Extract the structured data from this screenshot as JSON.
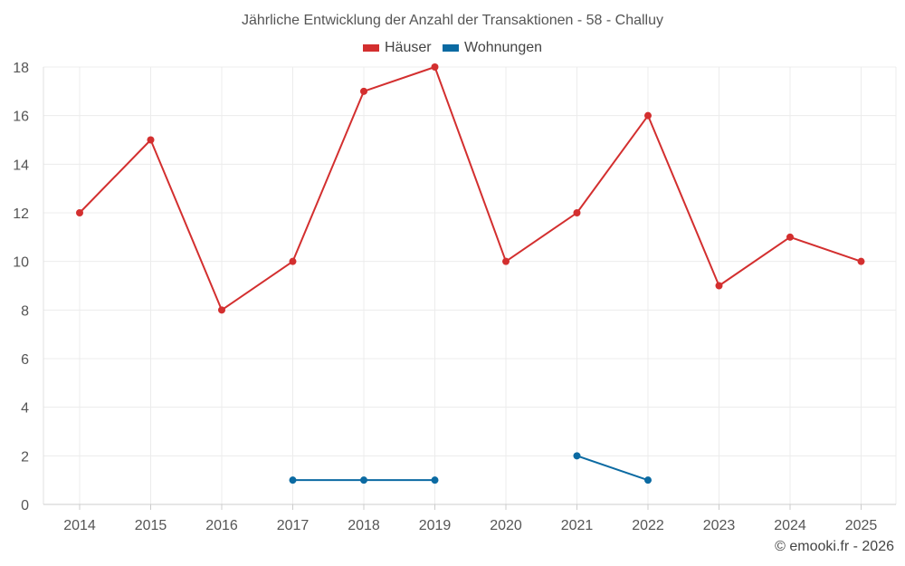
{
  "chart_data": {
    "type": "line",
    "title": "Jährliche Entwicklung der Anzahl der Transaktionen - 58 - Challuy",
    "xlabel": "",
    "ylabel": "",
    "categories": [
      "2014",
      "2015",
      "2016",
      "2017",
      "2018",
      "2019",
      "2020",
      "2021",
      "2022",
      "2023",
      "2024",
      "2025"
    ],
    "ylim": [
      0,
      18
    ],
    "yticks": [
      0,
      2,
      4,
      6,
      8,
      10,
      12,
      14,
      16,
      18
    ],
    "grid": true,
    "legend_position": "top-center",
    "series": [
      {
        "name": "Häuser",
        "color": "#d32f2f",
        "values": [
          12,
          15,
          8,
          10,
          17,
          18,
          10,
          12,
          16,
          9,
          11,
          10
        ]
      },
      {
        "name": "Wohnungen",
        "color": "#0b6aa2",
        "values": [
          null,
          null,
          null,
          1,
          1,
          1,
          null,
          2,
          1,
          null,
          null,
          null
        ]
      }
    ]
  },
  "credit": "© emooki.fr - 2026"
}
